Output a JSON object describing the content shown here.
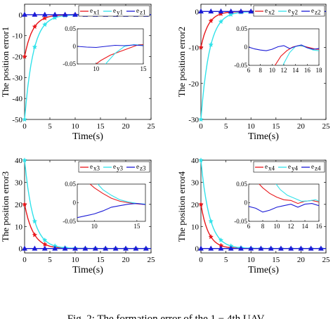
{
  "caption": "Fig. 2: The formation error of the 1 − 4th UAV.",
  "colors": {
    "x": "#e8171b",
    "y": "#31e2ea",
    "z": "#1a1ad6"
  },
  "chart_data": [
    {
      "type": "line",
      "ylabel": "The position error1",
      "xlabel": "Time(s)",
      "xlim": [
        0,
        25
      ],
      "ylim": [
        -50,
        5
      ],
      "xticks": [
        0,
        5,
        10,
        15,
        20,
        25
      ],
      "yticks": [
        0,
        -10,
        -20,
        -30,
        -40,
        -50
      ],
      "legend": {
        "labels": [
          "e",
          "e",
          "e"
        ],
        "subs": [
          "x1",
          "y1",
          "z1"
        ],
        "position": "top-right"
      },
      "series": [
        {
          "key": "x",
          "label": "ex1",
          "start": -20,
          "tau": 1.6,
          "marker": "*"
        },
        {
          "key": "y",
          "label": "ey1",
          "start": -50,
          "tau": 1.7,
          "marker": "*"
        },
        {
          "key": "z",
          "label": "ez1",
          "start": 0,
          "tau": 1,
          "marker": "^"
        }
      ],
      "inset": {
        "xlim": [
          8,
          15
        ],
        "ylim": [
          -0.05,
          0.05
        ],
        "xticks": [
          10,
          15
        ],
        "yticks": [
          0.05,
          0,
          -0.05
        ],
        "series": [
          {
            "key": "x",
            "x": [
              8.5,
              9.5,
              10.5,
              11.5,
              12.5,
              13.5,
              14.5,
              15
            ],
            "y": [
              -0.09,
              -0.06,
              -0.04,
              -0.025,
              -0.015,
              -0.005,
              0.005,
              0.005
            ]
          },
          {
            "key": "y",
            "x": [
              10.2,
              11,
              12,
              13,
              14,
              15
            ],
            "y": [
              -0.08,
              -0.05,
              -0.02,
              0,
              0.005,
              0.003
            ]
          },
          {
            "key": "z",
            "x": [
              8,
              9,
              10,
              11,
              12,
              13,
              14,
              15
            ],
            "y": [
              0,
              -0.002,
              -0.003,
              0,
              0.003,
              0.002,
              0.004,
              0.002
            ]
          }
        ]
      }
    },
    {
      "type": "line",
      "ylabel": "The position error2",
      "xlabel": "Time(s)",
      "xlim": [
        0,
        25
      ],
      "ylim": [
        -30,
        2
      ],
      "xticks": [
        0,
        5,
        10,
        15,
        20,
        25
      ],
      "yticks": [
        0,
        -10,
        -20,
        -30
      ],
      "legend": {
        "labels": [
          "e",
          "e",
          "e"
        ],
        "subs": [
          "x2",
          "y2",
          "z2"
        ],
        "position": "top-right"
      },
      "series": [
        {
          "key": "x",
          "label": "ex2",
          "start": -10,
          "tau": 1.5,
          "marker": "*"
        },
        {
          "key": "y",
          "label": "ey2",
          "start": -30,
          "tau": 1.7,
          "marker": "*"
        },
        {
          "key": "z",
          "label": "ez2",
          "start": 0,
          "tau": 1,
          "marker": "^"
        }
      ],
      "inset": {
        "xlim": [
          6,
          18
        ],
        "ylim": [
          -0.05,
          0.05
        ],
        "xticks": [
          6,
          8,
          10,
          12,
          14,
          16,
          18
        ],
        "yticks": [
          0.05,
          0,
          -0.05
        ],
        "series": [
          {
            "key": "x",
            "x": [
              9.5,
              10.5,
              11.5,
              12.5,
              13.5,
              14.5,
              15.5,
              16.5,
              17.5,
              18
            ],
            "y": [
              -0.09,
              -0.05,
              -0.025,
              -0.01,
              0,
              0.004,
              0.002,
              -0.002,
              -0.006,
              -0.006
            ]
          },
          {
            "key": "y",
            "x": [
              11.3,
              12,
              13,
              14,
              15,
              16,
              17,
              18
            ],
            "y": [
              -0.08,
              -0.045,
              -0.015,
              0.002,
              0.004,
              -0.002,
              -0.008,
              -0.01
            ]
          },
          {
            "key": "z",
            "x": [
              6,
              7,
              8,
              9,
              10,
              11,
              12,
              13,
              14,
              15,
              16,
              17,
              18
            ],
            "y": [
              0,
              -0.005,
              -0.008,
              -0.01,
              -0.006,
              0.001,
              0.004,
              -0.004,
              0.002,
              0.006,
              -0.002,
              -0.006,
              -0.004
            ]
          }
        ]
      }
    },
    {
      "type": "line",
      "ylabel": "The position error3",
      "xlabel": "Time(s)",
      "xlim": [
        0,
        25
      ],
      "ylim": [
        -2,
        40
      ],
      "xticks": [
        0,
        5,
        10,
        15,
        20,
        25
      ],
      "yticks": [
        40,
        30,
        20,
        10,
        0
      ],
      "legend": {
        "labels": [
          "e",
          "e",
          "e"
        ],
        "subs": [
          "x3",
          "y3",
          "z3"
        ],
        "position": "top-right"
      },
      "series": [
        {
          "key": "x",
          "label": "ex3",
          "start": 20,
          "tau": 1.7,
          "marker": "*"
        },
        {
          "key": "y",
          "label": "ey3",
          "start": 40,
          "tau": 1.7,
          "marker": "*"
        },
        {
          "key": "z",
          "label": "ez3",
          "start": 0,
          "tau": 1,
          "marker": "^"
        }
      ],
      "inset": {
        "xlim": [
          8,
          16
        ],
        "ylim": [
          -0.05,
          0.05
        ],
        "xticks": [
          10,
          15
        ],
        "yticks": [
          0.05,
          0,
          -0.05
        ],
        "series": [
          {
            "key": "x",
            "x": [
              8,
              9,
              10,
              11,
              12,
              13,
              14,
              15,
              16
            ],
            "y": [
              0.09,
              0.06,
              0.04,
              0.025,
              0.012,
              0.004,
              0,
              -0.003,
              -0.005
            ]
          },
          {
            "key": "y",
            "x": [
              9.2,
              10,
              11,
              12,
              13,
              14,
              15,
              16
            ],
            "y": [
              0.09,
              0.06,
              0.035,
              0.02,
              0.008,
              0.002,
              -0.002,
              -0.004
            ]
          },
          {
            "key": "z",
            "x": [
              8,
              9,
              10,
              11,
              12,
              13,
              14,
              15,
              16
            ],
            "y": [
              -0.04,
              -0.035,
              -0.03,
              -0.022,
              -0.012,
              -0.008,
              -0.004,
              -0.002,
              -0.005
            ]
          }
        ]
      }
    },
    {
      "type": "line",
      "ylabel": "The position error4",
      "xlabel": "Time(s)",
      "xlim": [
        0,
        25
      ],
      "ylim": [
        -2,
        40
      ],
      "xticks": [
        0,
        5,
        10,
        15,
        20,
        25
      ],
      "yticks": [
        40,
        30,
        20,
        10,
        0
      ],
      "legend": {
        "labels": [
          "e",
          "e",
          "e"
        ],
        "subs": [
          "x4",
          "y4",
          "z4"
        ],
        "position": "top-right"
      },
      "series": [
        {
          "key": "x",
          "label": "ex4",
          "start": 20,
          "tau": 1.5,
          "marker": "*"
        },
        {
          "key": "y",
          "label": "ey4",
          "start": 40,
          "tau": 1.7,
          "marker": "*"
        },
        {
          "key": "z",
          "label": "ez4",
          "start": 0,
          "tau": 1,
          "marker": "^"
        }
      ],
      "inset": {
        "xlim": [
          6,
          16
        ],
        "ylim": [
          -0.05,
          0.05
        ],
        "xticks": [
          6,
          8,
          10,
          12,
          14,
          16
        ],
        "yticks": [
          0.05,
          0,
          -0.05
        ],
        "series": [
          {
            "key": "x",
            "x": [
              6,
              7,
              8,
              9,
              10,
              11,
              12,
              13,
              14,
              15,
              16
            ],
            "y": [
              0.09,
              0.06,
              0.04,
              0.025,
              0.015,
              0.008,
              0.006,
              -0.002,
              0.004,
              0.006,
              0.002
            ]
          },
          {
            "key": "y",
            "x": [
              8.6,
              9.5,
              10.5,
              11.5,
              12.5,
              13.5,
              14.5,
              15.5,
              16
            ],
            "y": [
              0.09,
              0.06,
              0.035,
              0.02,
              0.012,
              0.004,
              0.005,
              0.008,
              0.004
            ]
          },
          {
            "key": "z",
            "x": [
              6,
              7,
              8,
              9,
              10,
              11,
              12,
              13,
              14,
              15,
              16
            ],
            "y": [
              -0.01,
              -0.015,
              -0.025,
              -0.02,
              -0.012,
              -0.008,
              -0.004,
              -0.012,
              -0.004,
              -0.002,
              -0.008
            ]
          }
        ]
      }
    }
  ]
}
